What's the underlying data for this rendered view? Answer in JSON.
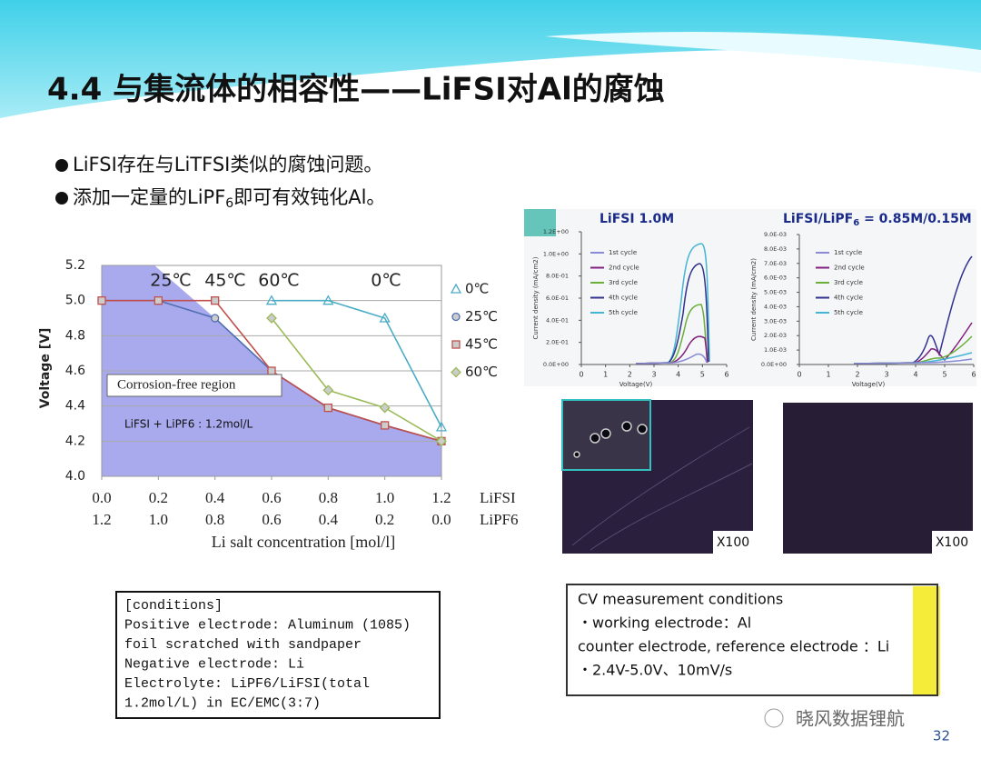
{
  "title": "4.4 与集流体的相容性——LiFSI对Al的腐蚀",
  "bullets": [
    [
      "LiFSI存在与LiTFSI类似的腐蚀问题。"
    ],
    [
      "添加一定量的LiPF",
      "6",
      "即可有效钝化Al。"
    ]
  ],
  "main_chart": {
    "type": "line",
    "ylabel": "Voltage [V]",
    "xlabel": "Li salt concentration [mol/l]",
    "row_labels": [
      "LiFSI",
      "LiPF6"
    ],
    "xlim": [
      0,
      1.2
    ],
    "ylim": [
      4.0,
      5.2
    ],
    "xticks": [
      {
        "value": 0,
        "label": "0.0"
      },
      0.2,
      0.4,
      0.6,
      0.8,
      {
        "value": 1,
        "label": "1.0"
      },
      1.2
    ],
    "lipf6_labels": [
      "1.2",
      "1.0",
      "0.8",
      "0.6",
      "0.4",
      "0.2",
      "0.0"
    ],
    "yticks": [
      {
        "value": 4,
        "label": "4.0"
      },
      4.2,
      4.4,
      4.6,
      4.8,
      {
        "value": 5,
        "label": "5.0"
      },
      5.2
    ],
    "grid": true,
    "series": [
      {
        "name": "0℃",
        "color": "#4bacc6",
        "marker": "triangle",
        "x": [
          0.6,
          0.8,
          1.0,
          1.2
        ],
        "values": [
          5.0,
          5.0,
          4.9,
          4.28
        ]
      },
      {
        "name": "25℃",
        "color": "#4f6fb0",
        "marker": "circle",
        "x": [
          0.0,
          0.2,
          0.4,
          0.6,
          0.8,
          1.0,
          1.2
        ],
        "values": [
          5.0,
          5.0,
          4.9,
          4.6,
          4.39,
          4.29,
          4.2
        ]
      },
      {
        "name": "45℃",
        "color": "#c0504d",
        "marker": "square",
        "x": [
          0.0,
          0.2,
          0.4,
          0.6,
          0.8,
          1.0,
          1.2
        ],
        "values": [
          5.0,
          5.0,
          5.0,
          4.6,
          4.39,
          4.29,
          4.2
        ]
      },
      {
        "name": "60℃",
        "color": "#9bbb59",
        "marker": "diamond",
        "x": [
          0.6,
          0.8,
          1.0,
          1.2
        ],
        "values": [
          4.9,
          4.49,
          4.39,
          4.2
        ]
      }
    ],
    "annotations": [
      "25℃",
      "45℃",
      "60℃",
      "0℃"
    ],
    "region_label": "Corrosion-free region",
    "electrolyte_label": "LiFSI + LiPF6 : 1.2mol/L"
  },
  "cv_charts": [
    {
      "title": [
        "LiFSI  1.0M"
      ],
      "ylabel": "Current density (mA/cm2)",
      "xlabel": "Voltage(V)",
      "xlim": [
        0,
        6
      ],
      "xticks": [
        0,
        1,
        2,
        3,
        4,
        5,
        6
      ],
      "ylim": [
        0,
        1.2
      ],
      "yticks": [
        {
          "value": 0,
          "label": "0.0E+00"
        },
        {
          "value": 0.2,
          "label": "2.0E-01"
        },
        {
          "value": 0.4,
          "label": "4.0E-01"
        },
        {
          "value": 0.6,
          "label": "6.0E-01"
        },
        {
          "value": 0.8,
          "label": "8.0E-01"
        },
        {
          "value": 1.0,
          "label": "1.0E+00"
        },
        {
          "value": 1.2,
          "label": "1.2E+00"
        }
      ],
      "legend": [
        {
          "name": "1st cycle",
          "color": "#8a8ad8"
        },
        {
          "name": "2nd cycle",
          "color": "#80207f"
        },
        {
          "name": "3rd cycle",
          "color": "#6aaf3a"
        },
        {
          "name": "4th cycle",
          "color": "#33338f"
        },
        {
          "name": "5th cycle",
          "color": "#45b5d5"
        }
      ]
    },
    {
      "title": [
        "LiFSI/LiPF",
        "6",
        " = 0.85M/0.15M"
      ],
      "ylabel": "Current density (mA/cm2)",
      "xlabel": "Voltage(V)",
      "xlim": [
        0,
        6
      ],
      "xticks": [
        0,
        1,
        2,
        3,
        4,
        5,
        6
      ],
      "ylim": [
        0,
        0.009
      ],
      "yticks": [
        {
          "value": 0,
          "label": "0.0E+00"
        },
        {
          "value": 0.001,
          "label": "1.0E-03"
        },
        {
          "value": 0.002,
          "label": "2.0E-03"
        },
        {
          "value": 0.003,
          "label": "3.0E-03"
        },
        {
          "value": 0.004,
          "label": "4.0E-03"
        },
        {
          "value": 0.005,
          "label": "5.0E-03"
        },
        {
          "value": 0.006,
          "label": "6.0E-03"
        },
        {
          "value": 0.007,
          "label": "7.0E-03"
        },
        {
          "value": 0.008,
          "label": "8.0E-03"
        },
        {
          "value": 0.009,
          "label": "9.0E-03"
        }
      ],
      "legend": [
        {
          "name": "1st cycle",
          "color": "#8a8ad8"
        },
        {
          "name": "2nd cycle",
          "color": "#80207f"
        },
        {
          "name": "3rd cycle",
          "color": "#6aaf3a"
        },
        {
          "name": "4th cycle",
          "color": "#33338f"
        },
        {
          "name": "5th cycle",
          "color": "#45b5d5"
        }
      ]
    }
  ],
  "micrograph_labels": [
    "X100",
    "X100"
  ],
  "conditions_left": [
    "[conditions]",
    "Positive electrode:  Aluminum (1085)",
    "foil scratched with sandpaper",
    "Negative electrode:  Li",
    "Electrolyte: LiPF6/LiFSI(total",
    "1.2mol/L) in EC/EMC(3:7)"
  ],
  "conditions_right": [
    "CV measurement conditions",
    "・working electrode：Al",
    "counter electrode, reference electrode ：Li",
    "・2.4V-5.0V、10mV/s"
  ],
  "watermark": "晓风数据锂航",
  "page_number": "32"
}
